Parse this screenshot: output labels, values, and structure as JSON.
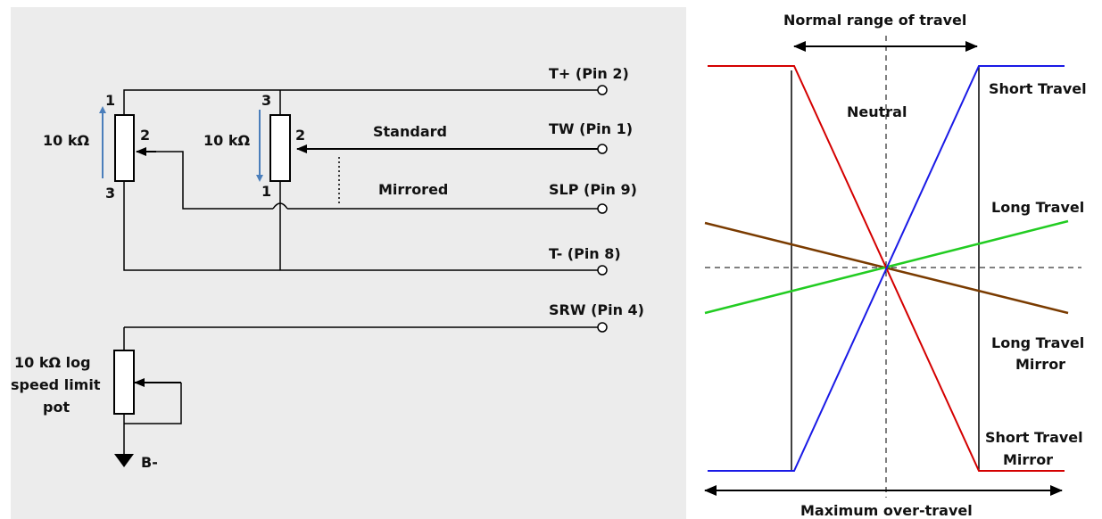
{
  "schematic": {
    "pins": {
      "t_plus": "T+  (Pin 2)",
      "tw": "TW (Pin 1)",
      "slp": "SLP (Pin 9)",
      "t_minus": "T-  (Pin 8)",
      "srw": "SRW (Pin 4)"
    },
    "wiper_modes": {
      "standard": "Standard",
      "mirrored": "Mirrored"
    },
    "pot_left": {
      "value": "10 kΩ",
      "pin_top": "1",
      "pin_wiper": "2",
      "pin_bottom": "3"
    },
    "pot_right": {
      "value": "10 kΩ",
      "pin_top": "3",
      "pin_wiper": "2",
      "pin_bottom": "1"
    },
    "speed_pot": {
      "line1": "10 kΩ log",
      "line2": "speed limit",
      "line3": "pot"
    },
    "ground_label": "B-",
    "colors": {
      "background": "#ececec",
      "wire": "#000000",
      "arrow": "#4a7ebb"
    }
  },
  "travel_graph": {
    "top_label": "Normal range of travel",
    "bottom_label": "Maximum over-travel",
    "neutral_label": "Neutral",
    "curves": {
      "short_travel": "Short Travel",
      "long_travel": "Long Travel",
      "long_travel_mirror_1": "Long Travel",
      "long_travel_mirror_2": "Mirror",
      "short_travel_mirror_1": "Short Travel",
      "short_travel_mirror_2": "Mirror"
    },
    "colors": {
      "short_travel": "#1a1ae6",
      "short_travel_mirror": "#d40000",
      "long_travel": "#22cc22",
      "long_travel_mirror": "#7a3b00"
    }
  }
}
